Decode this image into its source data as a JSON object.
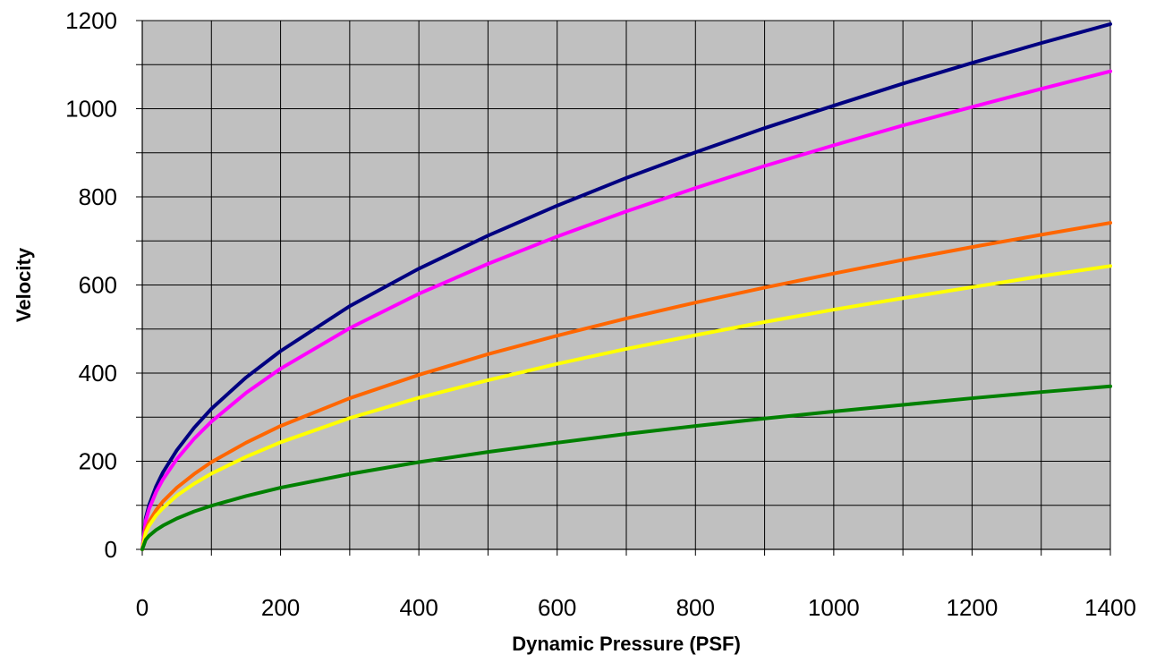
{
  "chart_data": {
    "type": "line",
    "title": "",
    "xlabel": "Dynamic Pressure (PSF)",
    "ylabel": "Velocity",
    "xlim": [
      0,
      1400
    ],
    "ylim": [
      0,
      1200
    ],
    "x_ticks": [
      "0",
      "200",
      "400",
      "600",
      "800",
      "1000",
      "1200",
      "1400"
    ],
    "y_ticks": [
      "0",
      "200",
      "400",
      "600",
      "800",
      "1000",
      "1200"
    ],
    "x_minor_step": 100,
    "y_minor_step": 100,
    "grid": true,
    "legend": "none",
    "plot_background": "#c0c0c0",
    "x": [
      0,
      5,
      10,
      20,
      30,
      50,
      75,
      100,
      150,
      200,
      300,
      400,
      500,
      600,
      700,
      800,
      900,
      1000,
      1100,
      1200,
      1300,
      1400
    ],
    "series": [
      {
        "color": "#000080",
        "values": [
          0,
          71,
          101,
          143,
          175,
          225,
          276,
          319,
          390,
          450,
          552,
          637,
          712,
          780,
          843,
          901,
          956,
          1007,
          1057,
          1104,
          1149,
          1192
        ]
      },
      {
        "color": "#ff00ff",
        "values": [
          0,
          65,
          92,
          130,
          159,
          205,
          251,
          290,
          355,
          410,
          502,
          580,
          648,
          710,
          767,
          820,
          870,
          917,
          962,
          1004,
          1045,
          1085
        ]
      },
      {
        "color": "#ff6600",
        "values": [
          0,
          44,
          63,
          89,
          109,
          140,
          171,
          198,
          242,
          280,
          343,
          396,
          443,
          485,
          524,
          560,
          594,
          626,
          657,
          686,
          714,
          741
        ]
      },
      {
        "color": "#ffff00",
        "values": [
          0,
          38,
          54,
          77,
          94,
          122,
          149,
          172,
          210,
          243,
          298,
          344,
          384,
          421,
          455,
          486,
          516,
          544,
          570,
          595,
          620,
          643
        ]
      },
      {
        "color": "#008000",
        "values": [
          0,
          22,
          31,
          44,
          54,
          70,
          86,
          99,
          121,
          140,
          171,
          198,
          221,
          242,
          262,
          280,
          297,
          313,
          328,
          343,
          357,
          370
        ]
      }
    ]
  }
}
